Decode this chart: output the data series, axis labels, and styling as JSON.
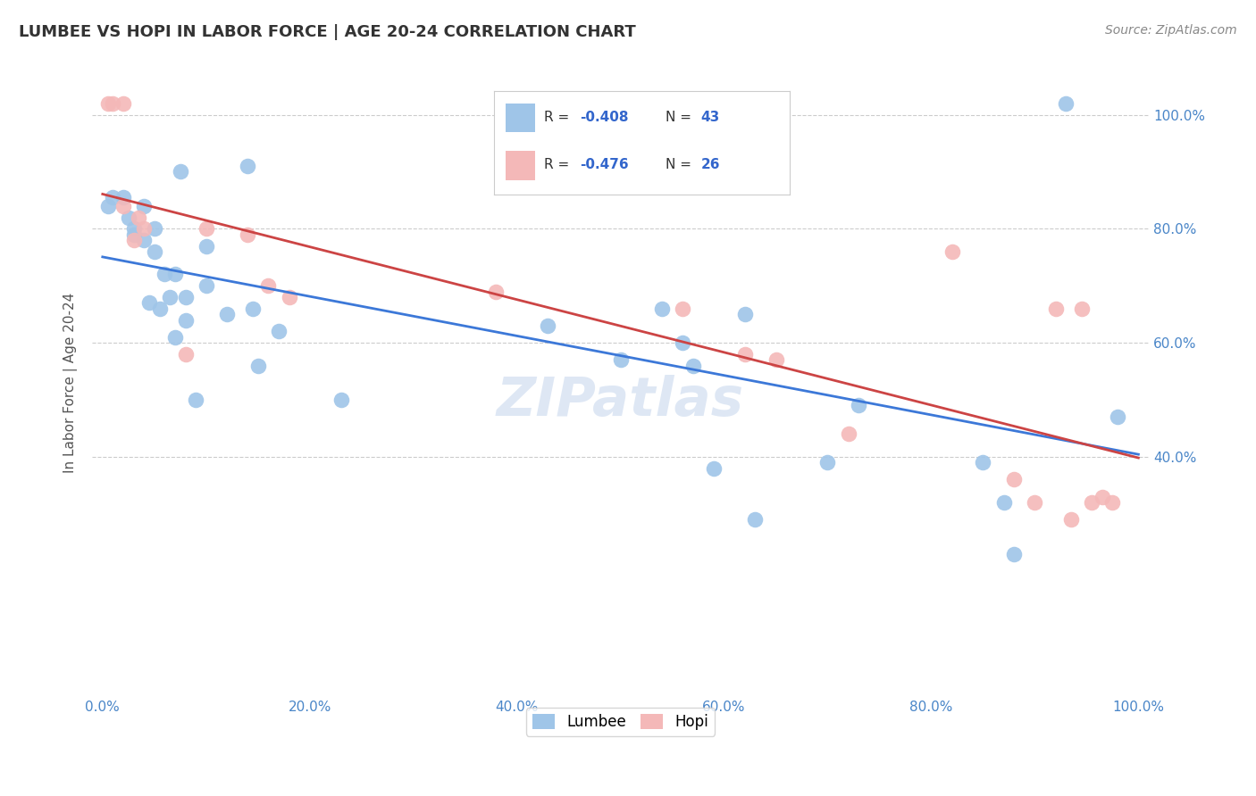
{
  "title": "LUMBEE VS HOPI IN LABOR FORCE | AGE 20-24 CORRELATION CHART",
  "source": "Source: ZipAtlas.com",
  "ylabel": "In Labor Force | Age 20-24",
  "xlim": [
    -0.01,
    1.01
  ],
  "ylim": [
    -0.02,
    1.08
  ],
  "xtick_vals": [
    0.0,
    0.2,
    0.4,
    0.6,
    0.8,
    1.0
  ],
  "xtick_labels": [
    "0.0%",
    "20.0%",
    "40.0%",
    "60.0%",
    "80.0%",
    "100.0%"
  ],
  "ytick_vals": [
    0.4,
    0.6,
    0.8,
    1.0
  ],
  "ytick_labels": [
    "40.0%",
    "60.0%",
    "80.0%",
    "100.0%"
  ],
  "lumbee_color": "#9fc5e8",
  "hopi_color": "#f4b8b8",
  "trend_lumbee_color": "#3c78d8",
  "trend_hopi_color": "#cc4444",
  "watermark": "ZIPatlas",
  "lumbee_R": "-0.408",
  "lumbee_N": "43",
  "hopi_R": "-0.476",
  "hopi_N": "26",
  "lumbee_x": [
    0.005,
    0.01,
    0.02,
    0.025,
    0.03,
    0.03,
    0.04,
    0.04,
    0.045,
    0.05,
    0.05,
    0.055,
    0.06,
    0.065,
    0.07,
    0.07,
    0.075,
    0.08,
    0.08,
    0.09,
    0.1,
    0.1,
    0.12,
    0.14,
    0.145,
    0.15,
    0.17,
    0.23,
    0.43,
    0.5,
    0.54,
    0.56,
    0.57,
    0.59,
    0.62,
    0.63,
    0.7,
    0.73,
    0.85,
    0.87,
    0.88,
    0.93,
    0.98
  ],
  "lumbee_y": [
    0.84,
    0.855,
    0.855,
    0.82,
    0.8,
    0.79,
    0.84,
    0.78,
    0.67,
    0.8,
    0.76,
    0.66,
    0.72,
    0.68,
    0.72,
    0.61,
    0.9,
    0.68,
    0.64,
    0.5,
    0.77,
    0.7,
    0.65,
    0.91,
    0.66,
    0.56,
    0.62,
    0.5,
    0.63,
    0.57,
    0.66,
    0.6,
    0.56,
    0.38,
    0.65,
    0.29,
    0.39,
    0.49,
    0.39,
    0.32,
    0.23,
    1.02,
    0.47
  ],
  "hopi_x": [
    0.005,
    0.01,
    0.02,
    0.02,
    0.03,
    0.035,
    0.04,
    0.08,
    0.1,
    0.14,
    0.16,
    0.18,
    0.38,
    0.56,
    0.62,
    0.65,
    0.72,
    0.82,
    0.88,
    0.9,
    0.92,
    0.935,
    0.945,
    0.955,
    0.965,
    0.975
  ],
  "hopi_y": [
    1.02,
    1.02,
    1.02,
    0.84,
    0.78,
    0.82,
    0.8,
    0.58,
    0.8,
    0.79,
    0.7,
    0.68,
    0.69,
    0.66,
    0.58,
    0.57,
    0.44,
    0.76,
    0.36,
    0.32,
    0.66,
    0.29,
    0.66,
    0.32,
    0.33,
    0.32
  ],
  "background_color": "#ffffff",
  "grid_color": "#cccccc",
  "tick_color": "#4a86c8",
  "legend_text_color": "#333333",
  "legend_val_color": "#3366cc"
}
